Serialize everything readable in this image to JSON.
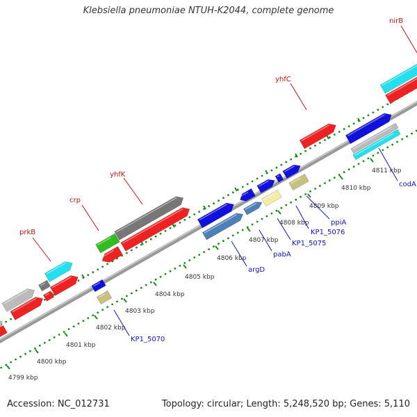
{
  "title": "Klebsiella pneumoniae NTUH-K2044, complete genome",
  "footer": {
    "accession": "Accession: NC_012731",
    "summary": "Topology: circular; Length: 5,248,520 bp; Genes: 5,110"
  },
  "ruler_ticks": [
    "4799 kbp",
    "4800 kbp",
    "4801 kbp",
    "4802 kbp",
    "4803 kbp",
    "4804 kbp",
    "4805 kbp",
    "4806 kbp",
    "4807 kbp",
    "4808 kbp",
    "4809 kbp",
    "4810 kbp",
    "4811 kbp"
  ],
  "gene_labels_top": [
    "prkB",
    "crp",
    "yhfK",
    "yhfC",
    "nirB"
  ],
  "gene_labels_bottom": [
    "KP1_5070",
    "argD",
    "pabA",
    "KP1_5075",
    "KP1_5076",
    "ppiA",
    "codA"
  ],
  "colors": {
    "red": "#ee2222",
    "blue": "#1111dd",
    "cyan": "#22e0ef",
    "green": "#33bb22",
    "gray": "#777777",
    "lightgray": "#bbbbbb",
    "steelblue": "#4d7fb8",
    "khaki": "#c8c080",
    "paleyellow": "#f2eca8",
    "tick_green": "#1a8c1a",
    "label_red": "#cc1111",
    "label_blue": "#1111cc"
  }
}
